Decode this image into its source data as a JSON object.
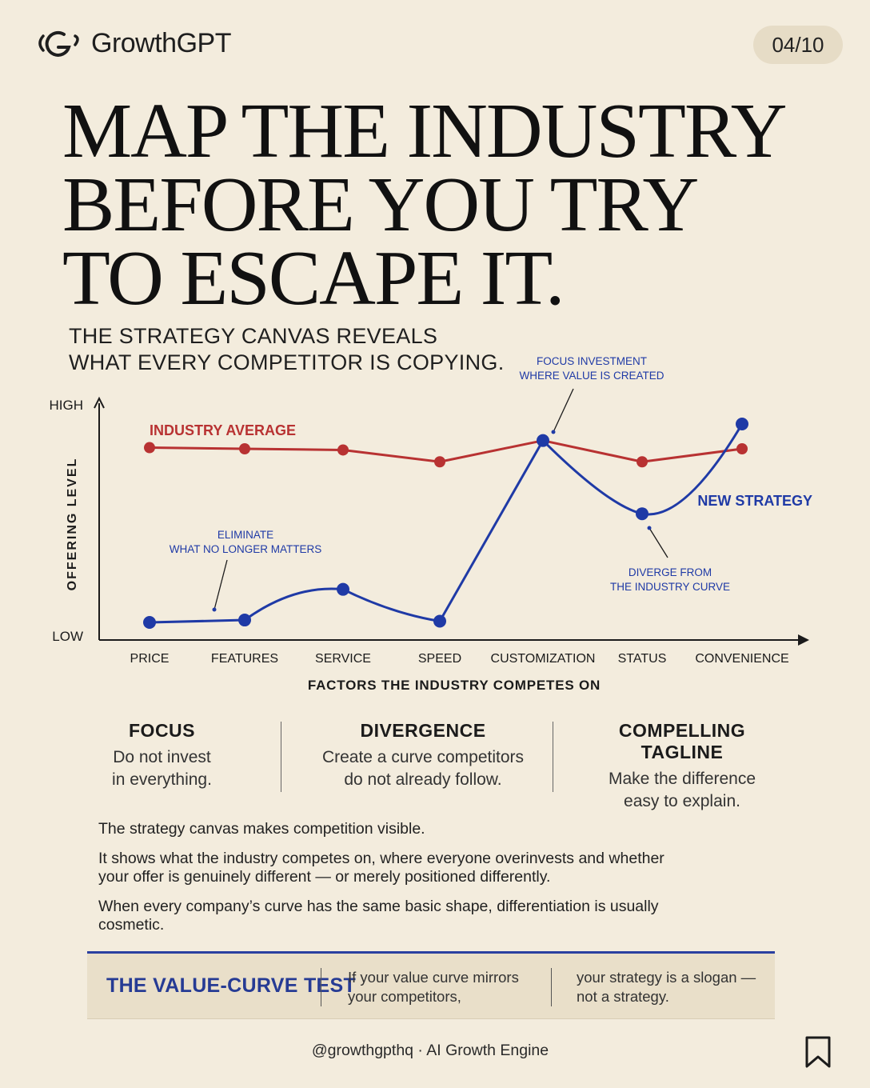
{
  "header": {
    "brand": "GrowthGPT",
    "page_indicator": "04/10"
  },
  "headline": [
    "MAP THE INDUSTRY",
    "BEFORE YOU TRY",
    "TO ESCAPE IT."
  ],
  "subheadline": [
    "THE STRATEGY CANVAS REVEALS",
    "WHAT EVERY COMPETITOR IS COPYING."
  ],
  "colors": {
    "industry": "#b83232",
    "strategy": "#1f3aa6",
    "ink": "#1b1b1b",
    "background": "#f3ecdd"
  },
  "chart_data": {
    "type": "line",
    "categories": [
      "PRICE",
      "FEATURES",
      "SERVICE",
      "SPEED",
      "CUSTOMIZATION",
      "STATUS",
      "CONVENIENCE"
    ],
    "xlabel": "FACTORS THE INDUSTRY COMPETES ON",
    "ylabel": "OFFERING LEVEL",
    "ytick_labels": [
      "LOW",
      "HIGH"
    ],
    "ylim": [
      0,
      10
    ],
    "series": [
      {
        "name": "INDUSTRY AVERAGE",
        "color": "#b83232",
        "values": [
          8.2,
          8.15,
          8.1,
          7.6,
          8.5,
          7.6,
          8.15
        ]
      },
      {
        "name": "NEW STRATEGY",
        "color": "#1f3aa6",
        "values": [
          0.8,
          0.9,
          2.2,
          0.85,
          8.5,
          5.4,
          9.2
        ]
      }
    ],
    "annotations": [
      {
        "lines": [
          "ELIMINATE",
          "WHAT NO LONGER MATTERS"
        ]
      },
      {
        "lines": [
          "FOCUS INVESTMENT",
          "WHERE VALUE IS CREATED"
        ]
      },
      {
        "lines": [
          "DIVERGE FROM",
          "THE INDUSTRY CURVE"
        ]
      }
    ],
    "grid": false,
    "legend": "inline labels"
  },
  "principles": [
    {
      "title": "FOCUS",
      "lines": [
        "Do not invest",
        "in everything."
      ]
    },
    {
      "title": "DIVERGENCE",
      "lines": [
        "Create a curve competitors",
        "do not already follow."
      ]
    },
    {
      "title": "COMPELLING TAGLINE",
      "lines": [
        "Make the difference",
        "easy to explain."
      ]
    }
  ],
  "body": {
    "p1": "The strategy canvas makes competition visible.",
    "p2": "It shows what the industry competes on, where everyone overinvests and whether your offer is genuinely different — or merely positioned differently.",
    "p3": "When every company’s curve has the same basic shape, differentiation is usually cosmetic."
  },
  "value_curve_test": {
    "title": "THE VALUE-CURVE TEST",
    "col1": [
      "If your value curve mirrors",
      "your competitors,"
    ],
    "col2": [
      "your strategy is a slogan —",
      "not a strategy."
    ]
  },
  "footer": {
    "handle": "@growthgpthq · AI Growth Engine"
  },
  "icons": {
    "brand": "growthgpt-logo-icon",
    "save": "bookmark-icon"
  }
}
